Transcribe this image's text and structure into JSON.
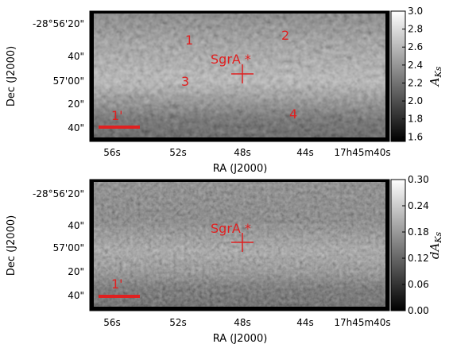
{
  "chart_data": [
    {
      "type": "heatmap",
      "panel": "top",
      "xlabel": "RA (J2000)",
      "ylabel": "Dec (J2000)",
      "x_ticks": [
        "56s",
        "52s",
        "48s",
        "44s",
        "17h45m40s"
      ],
      "y_ticks": [
        "-28°56'20\"",
        "40\"",
        "57'00\"",
        "20\"",
        "40\""
      ],
      "colorbar": {
        "label": "A_Ks",
        "label_main": "A",
        "label_sub": "Ks",
        "range": [
          1.55,
          3.0
        ],
        "ticks": [
          "3.0",
          "2.8",
          "2.6",
          "2.4",
          "2.2",
          "2.0",
          "1.8",
          "1.6"
        ],
        "colormap": "gray"
      },
      "annotations": [
        {
          "text": "SgrA *",
          "kind": "source",
          "color": "#e02020"
        },
        {
          "text": "1",
          "kind": "region"
        },
        {
          "text": "2",
          "kind": "region"
        },
        {
          "text": "3",
          "kind": "region"
        },
        {
          "text": "4",
          "kind": "region"
        },
        {
          "text": "1'",
          "kind": "scale-bar"
        }
      ]
    },
    {
      "type": "heatmap",
      "panel": "bottom",
      "xlabel": "RA (J2000)",
      "ylabel": "Dec (J2000)",
      "x_ticks": [
        "56s",
        "52s",
        "48s",
        "44s",
        "17h45m40s"
      ],
      "y_ticks": [
        "-28°56'20\"",
        "40\"",
        "57'00\"",
        "20\"",
        "40\""
      ],
      "colorbar": {
        "label": "dA_Ks",
        "label_main": "dA",
        "label_sub": "Ks",
        "range": [
          0.0,
          0.3
        ],
        "ticks": [
          "0.30",
          "0.24",
          "0.18",
          "0.12",
          "0.06",
          "0.00"
        ],
        "colormap": "gray"
      },
      "annotations": [
        {
          "text": "SgrA *",
          "kind": "source",
          "color": "#e02020"
        },
        {
          "text": "1'",
          "kind": "scale-bar"
        }
      ]
    }
  ]
}
